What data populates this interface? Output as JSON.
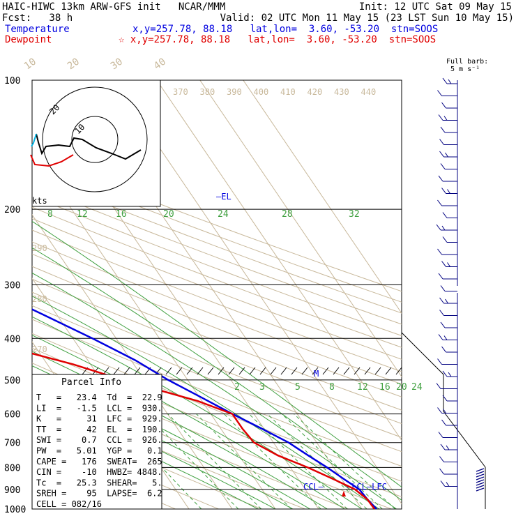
{
  "header": {
    "line1_left": "HAIC-HIWC 13km ARW-GFS init   NCAR/MMM",
    "line1_right": "Init: 12 UTC Sat 09 May 15",
    "fcst": "Fcst:   38 h",
    "valid": "Valid: 02 UTC Mon 11 May 15 (23 LST Sun 10 May 15)",
    "temperature_label": "Temperature",
    "temperature_info": "x,y=257.78, 88.18   lat,lon=  3.60, -53.20  stn=SOOS",
    "dewpoint_label": "Dewpoint",
    "dewpoint_info": "☆ x,y=257.78, 88.18   lat,lon=  3.60, -53.20  stn=SOOS",
    "full_barb": "Full barb:",
    "full_barb_units": "5 m s⁻¹"
  },
  "chart_data": {
    "type": "line",
    "title": "Skew-T log-p sounding",
    "pressure_levels": [
      100,
      200,
      300,
      400,
      500,
      600,
      700,
      800,
      900,
      1000
    ],
    "isotherm_labels": [
      "-80",
      "-70",
      "-60",
      "-50",
      "-40",
      "-30",
      "-20",
      "-10",
      "0",
      "10",
      "20",
      "30",
      "40"
    ],
    "theta_labels": [
      "370",
      "380",
      "390",
      "400",
      "410",
      "420",
      "430",
      "440"
    ],
    "theta_labels_left": [
      "290",
      "280",
      "270"
    ],
    "moist_adiabat_labels": [
      "8",
      "12",
      "16",
      "20",
      "24",
      "28",
      "32"
    ],
    "mixing_ratio_labels": [
      "2",
      "3",
      "5",
      "8",
      "12",
      "16",
      "20",
      "24"
    ],
    "series": [
      {
        "name": "Temperature",
        "color": "#0000e0",
        "points": [
          [
            100,
            -80
          ],
          [
            120,
            -78
          ],
          [
            150,
            -72
          ],
          [
            200,
            -57
          ],
          [
            250,
            -44
          ],
          [
            300,
            -33
          ],
          [
            350,
            -23.5
          ],
          [
            400,
            -15.5
          ],
          [
            450,
            -9
          ],
          [
            500,
            -4.5
          ],
          [
            550,
            0.5
          ],
          [
            600,
            5
          ],
          [
            650,
            9.5
          ],
          [
            700,
            13.5
          ],
          [
            750,
            16
          ],
          [
            800,
            18.5
          ],
          [
            850,
            20.5
          ],
          [
            900,
            22.5
          ],
          [
            950,
            22.8
          ],
          [
            1000,
            23.4
          ]
        ]
      },
      {
        "name": "Dewpoint",
        "color": "#e00000",
        "points": [
          [
            100,
            -82
          ],
          [
            130,
            -90
          ],
          [
            180,
            -92
          ],
          [
            200,
            -87
          ],
          [
            215,
            -83
          ],
          [
            240,
            -86
          ],
          [
            265,
            -93
          ],
          [
            280,
            -76
          ],
          [
            300,
            -64
          ],
          [
            330,
            -57
          ],
          [
            350,
            -49
          ],
          [
            380,
            -39
          ],
          [
            400,
            -35
          ],
          [
            430,
            -33
          ],
          [
            460,
            -24
          ],
          [
            500,
            -15
          ],
          [
            560,
            -1
          ],
          [
            600,
            5
          ],
          [
            650,
            5
          ],
          [
            700,
            5.5
          ],
          [
            750,
            9
          ],
          [
            800,
            14
          ],
          [
            850,
            18
          ],
          [
            900,
            21.5
          ],
          [
            950,
            22.8
          ],
          [
            1000,
            22.9
          ]
        ]
      }
    ],
    "markers": {
      "el_label": "—EL",
      "m_label": "M",
      "ccl_label": "CCL—",
      "lcl_lfc_label": "—LCL—LFC"
    },
    "el_pressure": 190,
    "ccl_pressure": 926,
    "lcl_pressure": 930
  },
  "hodograph": {
    "kts_label": "kts",
    "ring_labels": [
      "20",
      "10"
    ]
  },
  "parcel_info": {
    "title": "Parcel Info",
    "rows": [
      "T   =   23.4  Td  =  22.9",
      "LI  =   -1.5  LCL =  930.",
      "K   =     31  LFC =  929.",
      "TT  =     42  EL  =  190.",
      "SWI =    0.7  CCL =  926.",
      "PW  =   5.01  YGP =   0.1",
      "CAPE =   176  SWEAT=  265",
      "CIN =    -10  HWBZ= 4848.",
      "Tc  =   25.3  SHEAR=   5.",
      "SREH =    95  LAPSE=  6.2",
      "CELL = 082/16"
    ]
  },
  "wind_profile": {
    "barb_color": "#000080",
    "count": 34
  }
}
